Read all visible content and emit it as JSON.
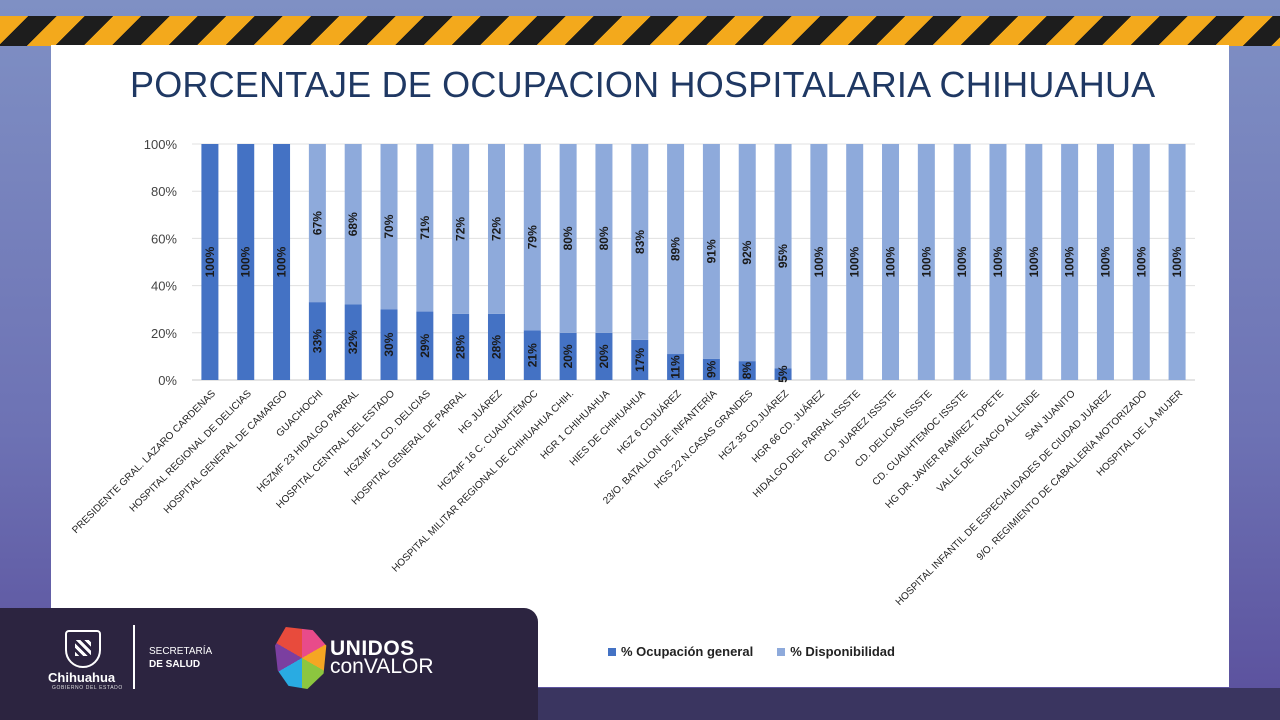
{
  "page": {
    "title": "PORCENTAJE DE OCUPACION HOSPITALARIA CHIHUAHUA"
  },
  "footer": {
    "gov_name": "Chihuahua",
    "gov_sub": "GOBIERNO DEL ESTADO",
    "secretaria_line1": "SECRETARÍA",
    "secretaria_line2": "DE SALUD",
    "campaign_line1": "UNIDOS",
    "campaign_line2": "conVALOR"
  },
  "colors": {
    "occupancy": "#4472c4",
    "availability": "#8eaadb",
    "title": "#1f3863"
  },
  "chart_data": {
    "type": "bar",
    "stacked": true,
    "categories": [
      "PRESIDENTE GRAL. LAZARO CARDENAS",
      "HOSPITAL REGIONAL DE DELICIAS",
      "HOSPITAL GENERAL DE CAMARGO",
      "GUACHOCHI",
      "HGZMF 23 HIDALGO PARRAL",
      "HOSPITAL CENTRAL DEL ESTADO",
      "HGZMF 11 CD. DELICIAS",
      "HOSPITAL GENERAL DE PARRAL",
      "HG  JUÁREZ",
      "HGZMF 16 C. CUAUHTÉMOC",
      "HOSPITAL MILITAR REGIONAL DE CHIHUAHUA CHIH.",
      "HGR 1 CHIHUAHUA",
      "HIES DE CHIHUAHUA",
      "HGZ 6 CDJUÁREZ",
      "23/O. BATALLON DE INFANTERÍA",
      "HGS 22 N.CASAS GRANDES",
      "HGZ 35 CD.JUÁREZ",
      "HGR 66 CD. JUÁREZ",
      "HIDALGO DEL PARRAL ISSSTE",
      "CD. JUAREZ ISSSTE",
      "CD. DELICIAS ISSSTE",
      "CD. CUAUHTEMOC ISSSTE",
      "HG DR. JAVIER RAMÍREZ TOPETE",
      "VALLE DE IGNACIO ALLENDE",
      "SAN JUANITO",
      "HOSPITAL INFANTIL DE ESPECIALIDADES DE CIUDAD JUÁREZ",
      "9/O. REGIMIENTO DE CABALLERÍA MOTORIZADO",
      "HOSPITAL DE LA MUJER"
    ],
    "series": [
      {
        "name": "% Ocupación general",
        "values": [
          100,
          100,
          100,
          33,
          32,
          30,
          29,
          28,
          28,
          21,
          20,
          20,
          17,
          11,
          9,
          8,
          5,
          0,
          0,
          0,
          0,
          0,
          0,
          0,
          0,
          0,
          0,
          0
        ]
      },
      {
        "name": "% Disponibilidad",
        "values": [
          0,
          0,
          0,
          67,
          68,
          70,
          71,
          72,
          72,
          79,
          80,
          80,
          83,
          89,
          91,
          92,
          95,
          100,
          100,
          100,
          100,
          100,
          100,
          100,
          100,
          100,
          100,
          100
        ]
      }
    ],
    "y_ticks": [
      "0%",
      "20%",
      "40%",
      "60%",
      "80%",
      "100%"
    ],
    "ylim": [
      0,
      100
    ],
    "grid": true,
    "legend_position": "bottom"
  }
}
